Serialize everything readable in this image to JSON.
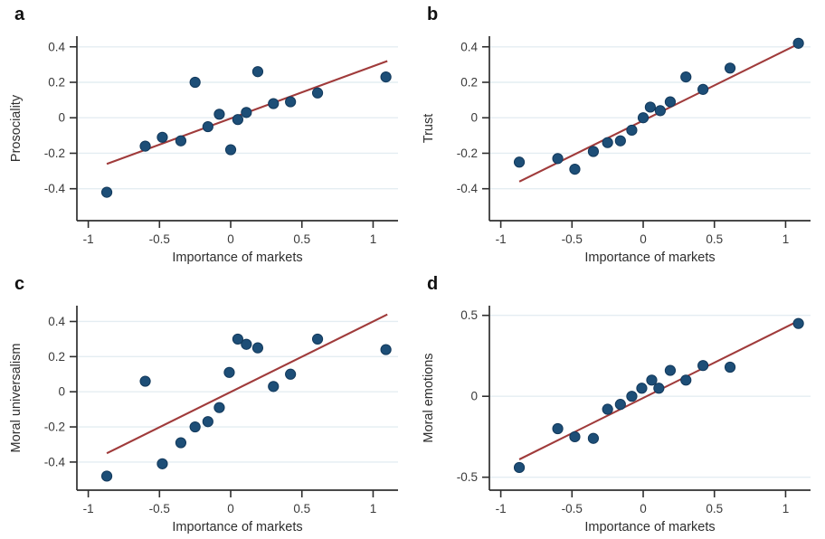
{
  "figure": {
    "type": "four-panel scatter figure",
    "shared_xlabel": "Importance of markets"
  },
  "style": {
    "background": "#ffffff",
    "dot_color": "#1d4e77",
    "dot_edge_color": "#12395c",
    "fit_line_color": "#a03b3b",
    "grid_color": "#e4edf2",
    "axis_color": "#2f2f2f",
    "tick_label_color": "#3a3a3a",
    "axis_title_color": "#2e2e2e"
  },
  "chart_data": [
    {
      "type": "scatter",
      "panel_label": "a",
      "xlabel": "Importance of markets",
      "ylabel": "Prosociality",
      "xticks": [
        -1,
        -0.5,
        0,
        0.5,
        1
      ],
      "yticks": [
        -0.4,
        -0.2,
        0,
        0.2,
        0.4
      ],
      "xlim": [
        -1.08,
        1.175
      ],
      "ylim": [
        -0.58,
        0.46
      ],
      "grid": "horizontal",
      "legend": "none",
      "points": [
        [
          -0.87,
          -0.42
        ],
        [
          -0.6,
          -0.16
        ],
        [
          -0.48,
          -0.11
        ],
        [
          -0.35,
          -0.13
        ],
        [
          -0.25,
          0.2
        ],
        [
          -0.16,
          -0.05
        ],
        [
          -0.08,
          0.02
        ],
        [
          0.0,
          -0.18
        ],
        [
          0.05,
          -0.01
        ],
        [
          0.11,
          0.03
        ],
        [
          0.19,
          0.26
        ],
        [
          0.3,
          0.08
        ],
        [
          0.42,
          0.09
        ],
        [
          0.61,
          0.14
        ],
        [
          1.09,
          0.23
        ]
      ],
      "fit_line": {
        "x1": -0.87,
        "y1": -0.26,
        "x2": 1.1,
        "y2": 0.32
      }
    },
    {
      "type": "scatter",
      "panel_label": "b",
      "xlabel": "Importance of markets",
      "ylabel": "Trust",
      "xticks": [
        -1,
        -0.5,
        0,
        0.5,
        1
      ],
      "yticks": [
        -0.4,
        -0.2,
        0,
        0.2,
        0.4
      ],
      "xlim": [
        -1.08,
        1.175
      ],
      "ylim": [
        -0.58,
        0.46
      ],
      "grid": "horizontal",
      "legend": "none",
      "points": [
        [
          -0.87,
          -0.25
        ],
        [
          -0.6,
          -0.23
        ],
        [
          -0.48,
          -0.29
        ],
        [
          -0.35,
          -0.19
        ],
        [
          -0.25,
          -0.14
        ],
        [
          -0.16,
          -0.13
        ],
        [
          -0.08,
          -0.07
        ],
        [
          0.0,
          0.0
        ],
        [
          0.05,
          0.06
        ],
        [
          0.12,
          0.04
        ],
        [
          0.19,
          0.09
        ],
        [
          0.3,
          0.23
        ],
        [
          0.42,
          0.16
        ],
        [
          0.61,
          0.28
        ],
        [
          1.09,
          0.42
        ]
      ],
      "fit_line": {
        "x1": -0.87,
        "y1": -0.36,
        "x2": 1.1,
        "y2": 0.42
      }
    },
    {
      "type": "scatter",
      "panel_label": "c",
      "xlabel": "Importance of markets",
      "ylabel": "Moral universalism",
      "xticks": [
        -1,
        -0.5,
        0,
        0.5,
        1
      ],
      "yticks": [
        -0.4,
        -0.2,
        0,
        0.2,
        0.4
      ],
      "xlim": [
        -1.08,
        1.175
      ],
      "ylim": [
        -0.56,
        0.49
      ],
      "grid": "horizontal",
      "legend": "none",
      "points": [
        [
          -0.87,
          -0.48
        ],
        [
          -0.6,
          0.06
        ],
        [
          -0.48,
          -0.41
        ],
        [
          -0.35,
          -0.29
        ],
        [
          -0.25,
          -0.2
        ],
        [
          -0.16,
          -0.17
        ],
        [
          -0.08,
          -0.09
        ],
        [
          -0.01,
          0.11
        ],
        [
          0.05,
          0.3
        ],
        [
          0.11,
          0.27
        ],
        [
          0.19,
          0.25
        ],
        [
          0.3,
          0.03
        ],
        [
          0.42,
          0.1
        ],
        [
          0.61,
          0.3
        ],
        [
          1.09,
          0.24
        ]
      ],
      "fit_line": {
        "x1": -0.87,
        "y1": -0.35,
        "x2": 1.1,
        "y2": 0.44
      }
    },
    {
      "type": "scatter",
      "panel_label": "d",
      "xlabel": "Importance of markets",
      "ylabel": "Moral emotions",
      "xticks": [
        -1,
        -0.5,
        0,
        0.5,
        1
      ],
      "yticks": [
        -0.5,
        0,
        0.5
      ],
      "xlim": [
        -1.08,
        1.175
      ],
      "ylim": [
        -0.58,
        0.56
      ],
      "grid": "horizontal",
      "legend": "none",
      "points": [
        [
          -0.87,
          -0.44
        ],
        [
          -0.6,
          -0.2
        ],
        [
          -0.48,
          -0.25
        ],
        [
          -0.35,
          -0.26
        ],
        [
          -0.25,
          -0.08
        ],
        [
          -0.16,
          -0.05
        ],
        [
          -0.08,
          0.0
        ],
        [
          -0.01,
          0.05
        ],
        [
          0.06,
          0.1
        ],
        [
          0.11,
          0.05
        ],
        [
          0.19,
          0.16
        ],
        [
          0.3,
          0.1
        ],
        [
          0.42,
          0.19
        ],
        [
          0.61,
          0.18
        ],
        [
          1.09,
          0.45
        ]
      ],
      "fit_line": {
        "x1": -0.87,
        "y1": -0.39,
        "x2": 1.1,
        "y2": 0.47
      }
    }
  ]
}
